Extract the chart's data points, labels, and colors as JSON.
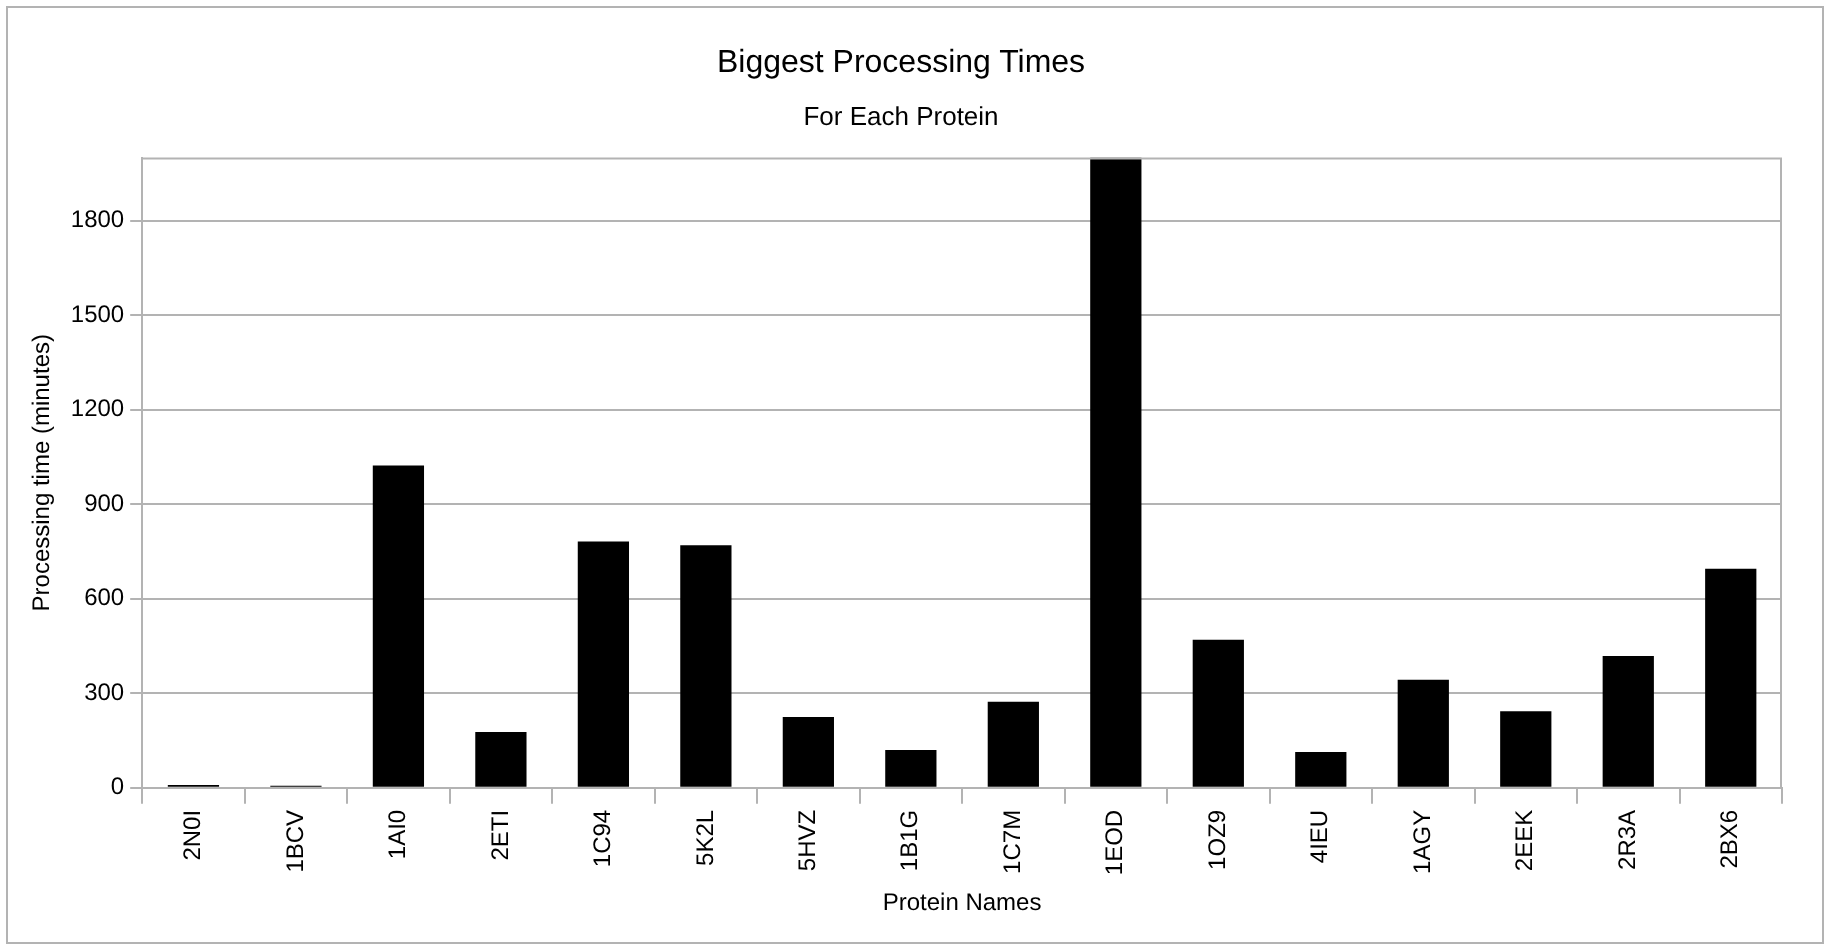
{
  "chart_data": {
    "type": "bar",
    "title": "Biggest Processing Times",
    "subtitle": "For Each Protein",
    "xlabel": "Protein Names",
    "ylabel": "Processing time (minutes)",
    "categories": [
      "2N0I",
      "1BCV",
      "1AI0",
      "2ETI",
      "1C94",
      "5K2L",
      "5HVZ",
      "1B1G",
      "1C7M",
      "1EOD",
      "1OZ9",
      "4IEU",
      "1AGY",
      "2EEK",
      "2R3A",
      "2BX6"
    ],
    "values": [
      9,
      7,
      1023,
      177,
      782,
      770,
      225,
      120,
      273,
      2000,
      470,
      114,
      343,
      243,
      418,
      695
    ],
    "color": "#000000",
    "ylim": [
      0,
      2000
    ],
    "yticks": [
      0,
      300,
      600,
      900,
      1200,
      1500,
      1800
    ],
    "grid": "y",
    "legend": false
  }
}
